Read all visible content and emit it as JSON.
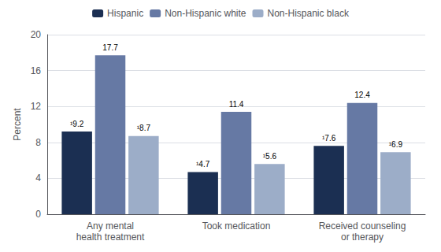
{
  "chart_data": {
    "type": "bar",
    "categories": [
      "Any mental\nhealth treatment",
      "Took medication",
      "Received counseling\nor therapy"
    ],
    "series": [
      {
        "name": "Hispanic",
        "color": "#1b2f52",
        "values": [
          9.2,
          4.7,
          7.6
        ],
        "value_labels": [
          "¹9.2",
          "¹4.7",
          "¹7.6"
        ]
      },
      {
        "name": "Non-Hispanic white",
        "color": "#6679a4",
        "values": [
          17.7,
          11.4,
          12.4
        ],
        "value_labels": [
          "17.7",
          "11.4",
          "12.4"
        ]
      },
      {
        "name": "Non-Hispanic black",
        "color": "#9cadc8",
        "values": [
          8.7,
          5.6,
          6.9
        ],
        "value_labels": [
          "¹8.7",
          "¹5.6",
          "¹6.9"
        ]
      }
    ],
    "ylabel": "Percent",
    "ylim": [
      0,
      20
    ],
    "yticks": [
      0,
      4,
      8,
      12,
      16,
      20
    ],
    "grid": true,
    "legend": "top",
    "data_labels": true
  }
}
